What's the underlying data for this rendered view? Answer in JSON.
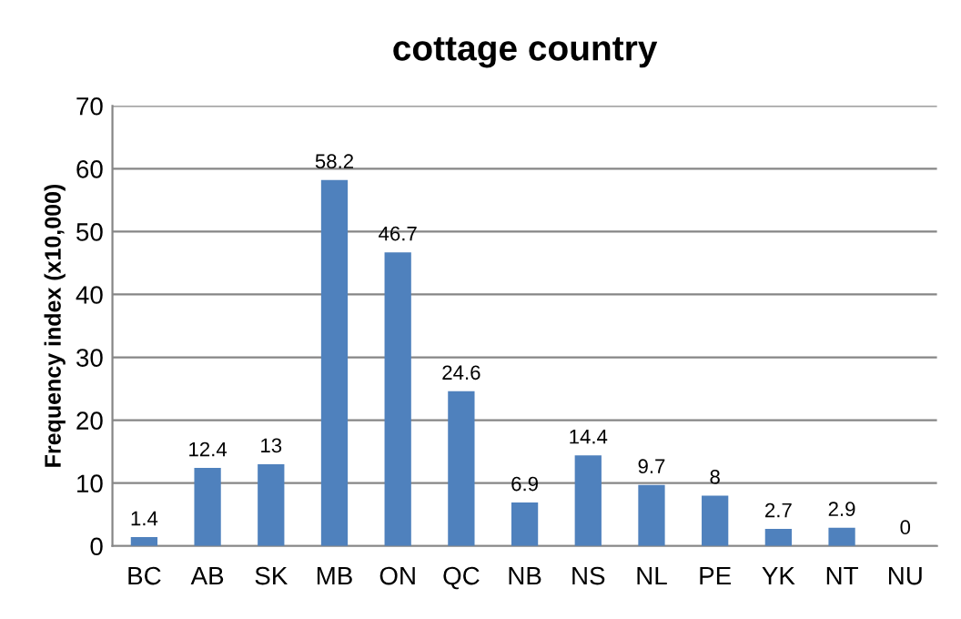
{
  "chart_data": {
    "type": "bar",
    "title": "cottage country",
    "ylabel": "Frequency index (x10,000)",
    "categories": [
      "BC",
      "AB",
      "SK",
      "MB",
      "ON",
      "QC",
      "NB",
      "NS",
      "NL",
      "PE",
      "YK",
      "NT",
      "NU"
    ],
    "values": [
      1.4,
      12.4,
      13,
      58.2,
      46.7,
      24.6,
      6.9,
      14.4,
      9.7,
      8,
      2.7,
      2.9,
      0
    ],
    "color": "#4f81bd",
    "ylim": [
      0,
      70
    ],
    "yticks": [
      0,
      10,
      20,
      30,
      40,
      50,
      60,
      70
    ],
    "grid": "y",
    "data_labels": true
  }
}
